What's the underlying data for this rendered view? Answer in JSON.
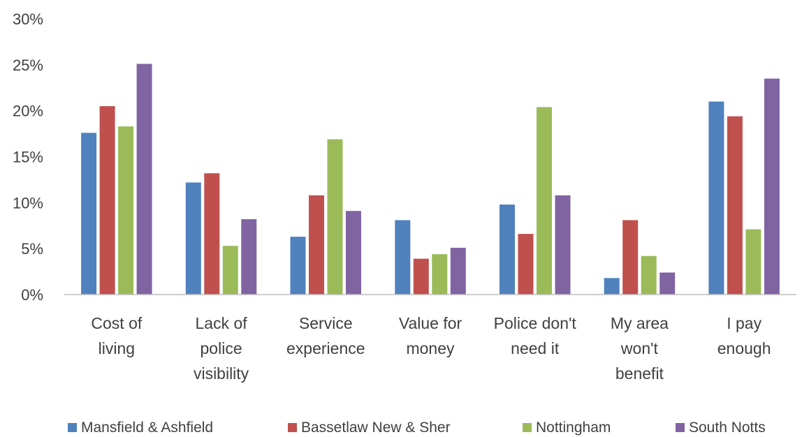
{
  "chart_data": {
    "type": "bar",
    "title": "",
    "xlabel": "",
    "ylabel": "",
    "ylim": [
      0,
      30
    ],
    "y_ticks": [
      "0%",
      "5%",
      "10%",
      "15%",
      "20%",
      "25%",
      "30%"
    ],
    "y_tick_values": [
      0,
      5,
      10,
      15,
      20,
      25,
      30
    ],
    "grid": false,
    "legend_position": "bottom",
    "categories": [
      [
        "Cost of",
        "living"
      ],
      [
        "Lack of",
        "police",
        "visibility"
      ],
      [
        "Service",
        "experience"
      ],
      [
        "Value for",
        "money"
      ],
      [
        "Police don't",
        "need it"
      ],
      [
        "My area",
        "won't",
        "benefit"
      ],
      [
        "I pay",
        "enough"
      ]
    ],
    "series": [
      {
        "name": "Mansfield & Ashfield",
        "color": "#4F81BD",
        "values": [
          17.6,
          12.2,
          6.3,
          8.1,
          9.8,
          1.8,
          21.0
        ]
      },
      {
        "name": "Bassetlaw New & Sher",
        "color": "#C0504D",
        "values": [
          20.5,
          13.2,
          10.8,
          3.9,
          6.6,
          8.1,
          19.4
        ]
      },
      {
        "name": "Nottingham",
        "color": "#9BBB59",
        "values": [
          18.3,
          5.3,
          16.9,
          4.4,
          20.4,
          4.2,
          7.1
        ]
      },
      {
        "name": "South Notts",
        "color": "#8064A2",
        "values": [
          25.1,
          8.2,
          9.1,
          5.1,
          10.8,
          2.4,
          23.5
        ]
      }
    ]
  }
}
